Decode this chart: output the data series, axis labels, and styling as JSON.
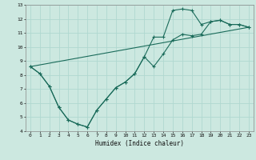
{
  "xlabel": "Humidex (Indice chaleur)",
  "ylabel": "",
  "bg_color": "#cce8e0",
  "line_color": "#1a6b5a",
  "grid_color": "#b0d8d0",
  "xlim": [
    -0.5,
    23.5
  ],
  "ylim": [
    4,
    13
  ],
  "xticks": [
    0,
    1,
    2,
    3,
    4,
    5,
    6,
    7,
    8,
    9,
    10,
    11,
    12,
    13,
    14,
    15,
    16,
    17,
    18,
    19,
    20,
    21,
    22,
    23
  ],
  "yticks": [
    4,
    5,
    6,
    7,
    8,
    9,
    10,
    11,
    12,
    13
  ],
  "line1_x": [
    0,
    1,
    2,
    3,
    4,
    5,
    6,
    7,
    8,
    9,
    10,
    11,
    12,
    13,
    14,
    15,
    16,
    17,
    18,
    19,
    20,
    21,
    22,
    23
  ],
  "line1_y": [
    8.6,
    8.1,
    7.2,
    5.7,
    4.8,
    4.5,
    4.3,
    5.5,
    6.3,
    7.1,
    7.5,
    8.1,
    9.3,
    8.6,
    9.5,
    10.5,
    10.9,
    10.8,
    10.9,
    11.8,
    11.9,
    11.6,
    11.6,
    11.4
  ],
  "line2_x": [
    0,
    1,
    2,
    3,
    4,
    5,
    6,
    7,
    8,
    9,
    10,
    11,
    12,
    13,
    14,
    15,
    16,
    17,
    18,
    19,
    20,
    21,
    22,
    23
  ],
  "line2_y": [
    8.6,
    8.1,
    7.2,
    5.7,
    4.8,
    4.5,
    4.3,
    5.5,
    6.3,
    7.1,
    7.5,
    8.1,
    9.3,
    10.7,
    10.7,
    12.6,
    12.7,
    12.6,
    11.6,
    11.8,
    11.9,
    11.6,
    11.6,
    11.4
  ],
  "line3_x": [
    0,
    23
  ],
  "line3_y": [
    8.6,
    11.4
  ],
  "marker": "+"
}
